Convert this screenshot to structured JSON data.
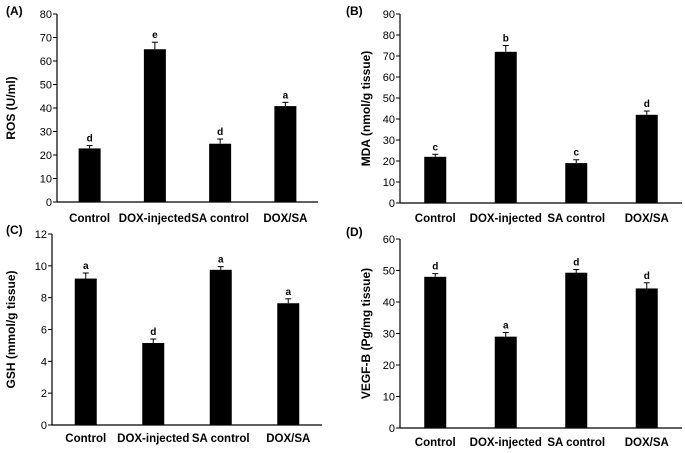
{
  "chart_data": [
    {
      "type": "bar",
      "panel_label": "(A)",
      "categories": [
        "Control",
        "DOX-injected",
        "SA control",
        "DOX/SA"
      ],
      "values": [
        22.8,
        65,
        24.8,
        40.8
      ],
      "errors": [
        1.2,
        3,
        2,
        1.6
      ],
      "significance": [
        "d",
        "e",
        "d",
        "a"
      ],
      "ylabel": "ROS (U/ml)",
      "ylim": [
        0,
        80
      ],
      "yticks": [
        0,
        10,
        20,
        30,
        40,
        50,
        60,
        70,
        80
      ],
      "ytick_labels": [
        "0",
        "10",
        "20",
        "30",
        "40",
        "50",
        "60",
        "70",
        "80"
      ]
    },
    {
      "type": "bar",
      "panel_label": "(B)",
      "categories": [
        "Control",
        "DOX-injected",
        "SA control",
        "DOX/SA"
      ],
      "values": [
        22,
        72,
        19,
        42
      ],
      "errors": [
        1.2,
        3,
        1.6,
        1.8
      ],
      "significance": [
        "c",
        "b",
        "c",
        "d"
      ],
      "ylabel": "MDA (nmol/g tissue)",
      "ylim": [
        0,
        90
      ],
      "yticks": [
        0,
        10,
        20,
        30,
        40,
        50,
        60,
        70,
        80,
        90
      ],
      "ytick_labels": [
        "0",
        "10",
        "20",
        "30",
        "40",
        "50",
        "60",
        "70",
        "80",
        "90"
      ]
    },
    {
      "type": "bar",
      "panel_label": "(C)",
      "categories": [
        "Control",
        "DOX-injected",
        "SA control",
        "DOX/SA"
      ],
      "values": [
        9.2,
        5.15,
        9.75,
        7.65
      ],
      "errors": [
        0.35,
        0.25,
        0.2,
        0.28
      ],
      "significance": [
        "a",
        "d",
        "a",
        "a"
      ],
      "ylabel": "GSH (mmol/g tissue)",
      "ylim": [
        0,
        12
      ],
      "yticks": [
        0,
        2,
        4,
        6,
        8,
        10,
        12
      ],
      "ytick_labels": [
        "0",
        "2",
        "4",
        "6",
        "8",
        "10",
        "12"
      ]
    },
    {
      "type": "bar",
      "panel_label": "(D)",
      "categories": [
        "Control",
        "DOX-injected",
        "SA control",
        "DOX/SA"
      ],
      "values": [
        48,
        29,
        49.3,
        44.3
      ],
      "errors": [
        1,
        1.3,
        1,
        1.8
      ],
      "significance": [
        "d",
        "a",
        "d",
        "d"
      ],
      "ylabel": "VEGF-B (Pg/mg tissue)",
      "ylim": [
        0,
        60
      ],
      "yticks": [
        0,
        10,
        20,
        30,
        40,
        50,
        60
      ],
      "ytick_labels": [
        "0",
        "10",
        "20",
        "30",
        "40",
        "50",
        "60"
      ]
    }
  ]
}
